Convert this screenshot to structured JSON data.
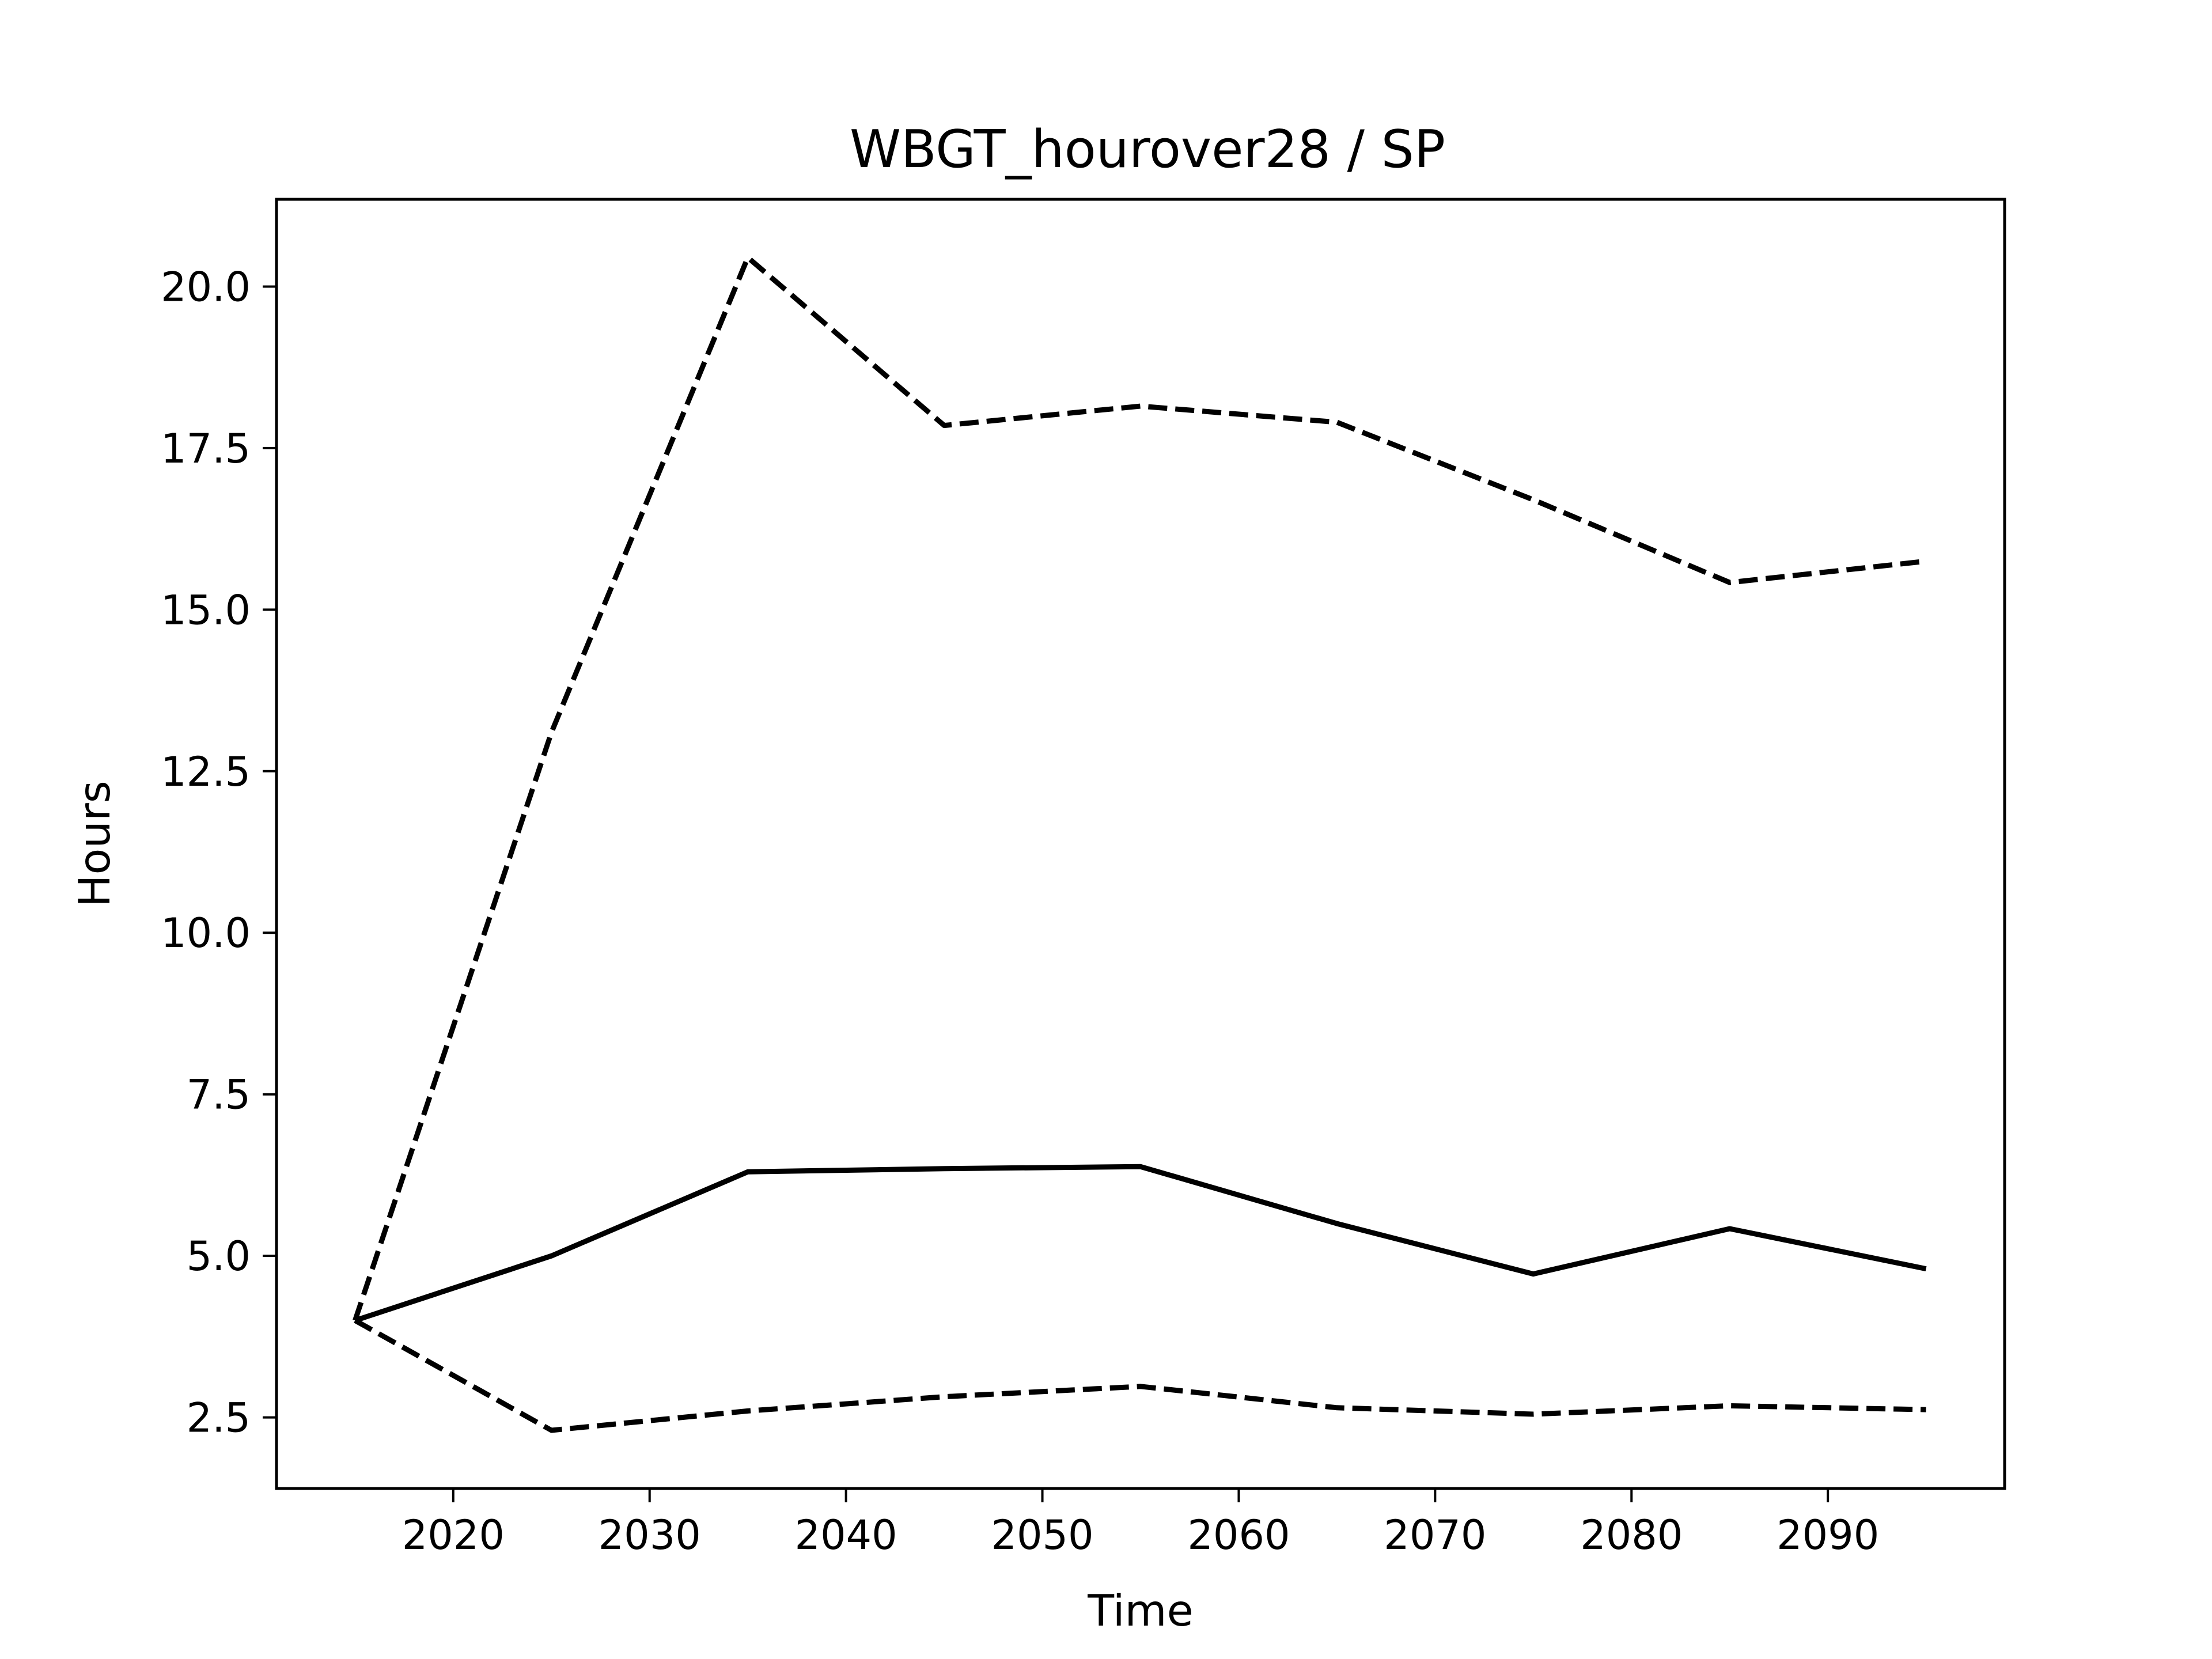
{
  "chart_data": {
    "type": "line",
    "title": "WBGT_hourover28 / SP",
    "xlabel": "Time",
    "ylabel": "Hours",
    "xlim": [
      2011,
      2099
    ],
    "ylim": [
      1.4,
      21.35
    ],
    "xticks": [
      2020,
      2030,
      2040,
      2050,
      2060,
      2070,
      2080,
      2090
    ],
    "yticks": [
      2.5,
      5.0,
      7.5,
      10.0,
      12.5,
      15.0,
      17.5,
      20.0
    ],
    "ytick_labels": [
      "2.5",
      "5.0",
      "7.5",
      "10.0",
      "12.5",
      "15.0",
      "17.5",
      "20.0"
    ],
    "grid": false,
    "x": [
      2015,
      2025,
      2035,
      2045,
      2055,
      2065,
      2075,
      2085,
      2095
    ],
    "series": [
      {
        "style": "solid",
        "color": "#000000",
        "values": [
          4.0,
          5.0,
          6.3,
          6.35,
          6.38,
          5.5,
          4.72,
          5.42,
          4.8
        ]
      },
      {
        "style": "dashed",
        "color": "#000000",
        "values": [
          4.0,
          13.1,
          20.45,
          17.85,
          18.15,
          17.9,
          16.7,
          15.42,
          15.75
        ]
      },
      {
        "style": "dashed",
        "color": "#000000",
        "values": [
          4.0,
          2.3,
          2.6,
          2.82,
          2.98,
          2.65,
          2.55,
          2.68,
          2.62
        ]
      }
    ]
  }
}
